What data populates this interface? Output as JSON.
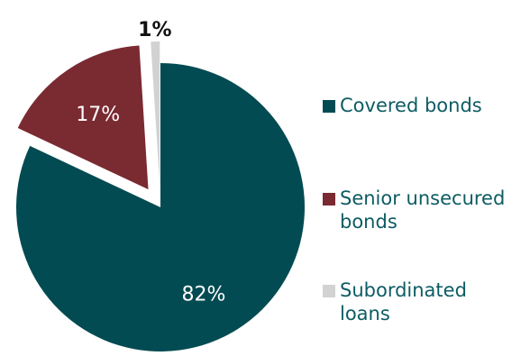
{
  "chart_data": {
    "type": "pie",
    "title": "",
    "labels": [
      "Covered bonds",
      "Senior unsecured bonds",
      "Subordinated loans"
    ],
    "values": [
      82,
      17,
      1
    ],
    "data_labels": [
      "82%",
      "17%",
      "1%"
    ],
    "legend_lines": [
      [
        "Covered bonds"
      ],
      [
        "Senior unsecured",
        "bonds"
      ],
      [
        "Subordinated",
        "loans"
      ]
    ],
    "colors": [
      "#034b52",
      "#7a2a31",
      "#d2d2d2"
    ],
    "label_colors": [
      "#ffffff",
      "#ffffff",
      "#111111"
    ],
    "legend_text_color": "#0d5c63",
    "exploded": [
      false,
      true,
      true
    ],
    "start_angle_deg": 0,
    "direction": "clockwise",
    "legend_position": "right"
  }
}
